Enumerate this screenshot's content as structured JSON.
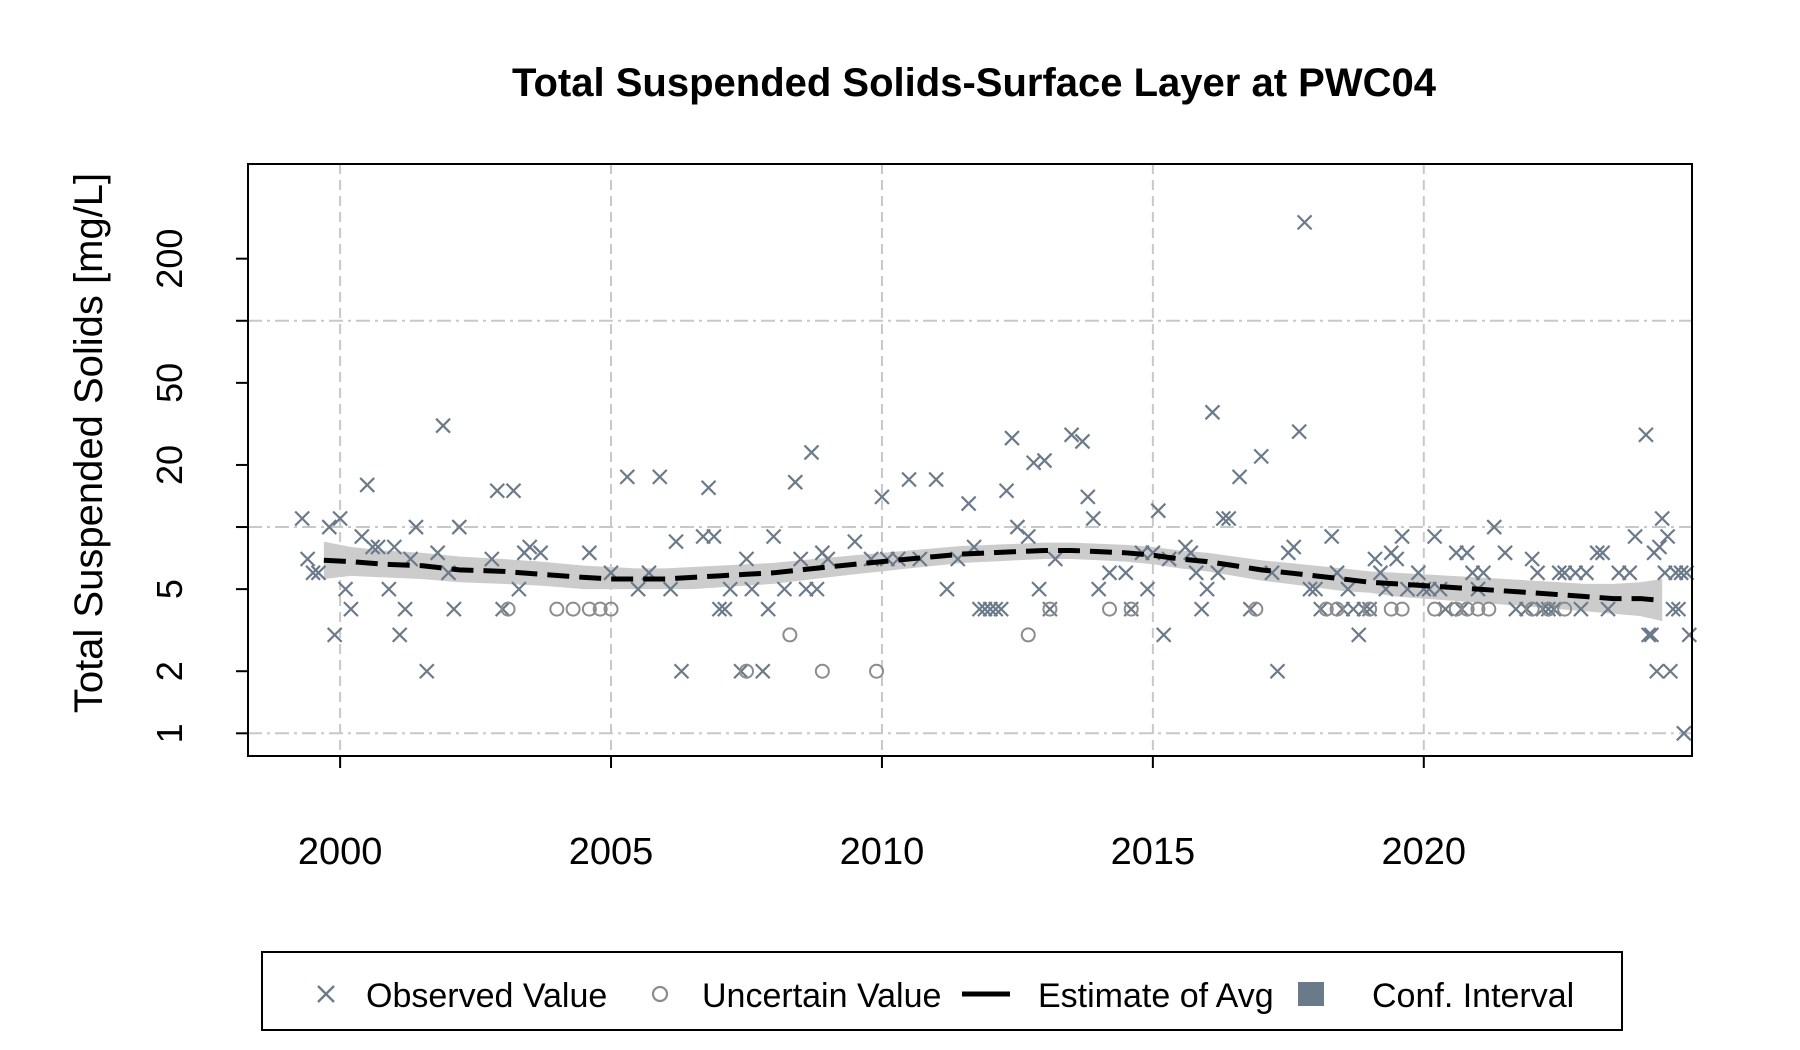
{
  "chart_data": {
    "type": "scatter",
    "title": "Total Suspended Solids-Surface Layer at PWC04",
    "ylabel": "Total Suspended Solids [mg/L]",
    "xlabel": "",
    "y_scale": "log",
    "xlim": [
      1998.3,
      2024.95
    ],
    "ylim_log10": [
      -0.11,
      2.76
    ],
    "x_ticks": [
      2000,
      2005,
      2010,
      2015,
      2020
    ],
    "x_tick_labels": [
      "2000",
      "2005",
      "2010",
      "2015",
      "2020"
    ],
    "y_ticks": [
      1,
      2,
      5,
      20,
      50,
      200
    ],
    "y_tick_labels": [
      "1",
      "2",
      "5",
      "20",
      "50",
      "200"
    ],
    "y_grid": [
      1,
      10,
      100
    ],
    "grid": true,
    "legend_position": "bottom",
    "colors": {
      "observed": "#6b7a8a",
      "uncertain": "#8c8c8c",
      "estimate": "#000000",
      "ci_fill": "#cccccc",
      "ci_legend": "#6b7a8a",
      "grid": "#c8c8c8"
    },
    "legend": [
      {
        "label": "Observed Value",
        "symbol": "x"
      },
      {
        "label": "Uncertain Value",
        "symbol": "circle"
      },
      {
        "label": "Estimate of Avg",
        "symbol": "dashed-line"
      },
      {
        "label": "Conf. Interval",
        "symbol": "square"
      }
    ],
    "series": [
      {
        "name": "Observed Value",
        "points": [
          [
            1999.3,
            11
          ],
          [
            1999.4,
            7
          ],
          [
            1999.5,
            6
          ],
          [
            1999.6,
            6
          ],
          [
            1999.8,
            10
          ],
          [
            1999.9,
            3
          ],
          [
            2000,
            11
          ],
          [
            2000.1,
            5
          ],
          [
            2000.2,
            4
          ],
          [
            2000.4,
            9
          ],
          [
            2000.5,
            16
          ],
          [
            2000.6,
            8
          ],
          [
            2000.7,
            8
          ],
          [
            2000.9,
            5
          ],
          [
            2001.0,
            8
          ],
          [
            2001.1,
            3
          ],
          [
            2001.2,
            4
          ],
          [
            2001.3,
            7
          ],
          [
            2001.4,
            10
          ],
          [
            2001.6,
            2
          ],
          [
            2001.8,
            7.5
          ],
          [
            2001.9,
            31
          ],
          [
            2002.0,
            6
          ],
          [
            2002.1,
            4
          ],
          [
            2002.2,
            10
          ],
          [
            2002.8,
            7
          ],
          [
            2002.9,
            15
          ],
          [
            2003.0,
            4
          ],
          [
            2003.2,
            15
          ],
          [
            2003.3,
            5
          ],
          [
            2003.4,
            7.5
          ],
          [
            2003.5,
            8
          ],
          [
            2003.7,
            7.5
          ],
          [
            2004.6,
            7.5
          ],
          [
            2005.0,
            6
          ],
          [
            2005.3,
            17.5
          ],
          [
            2005.5,
            5
          ],
          [
            2005.7,
            6
          ],
          [
            2005.9,
            17.5
          ],
          [
            2006.1,
            5
          ],
          [
            2006.2,
            8.5
          ],
          [
            2006.3,
            2
          ],
          [
            2006.7,
            9
          ],
          [
            2006.8,
            15.5
          ],
          [
            2006.9,
            9
          ],
          [
            2007.0,
            4
          ],
          [
            2007.1,
            4
          ],
          [
            2007.2,
            5
          ],
          [
            2007.4,
            2
          ],
          [
            2007.5,
            7
          ],
          [
            2007.6,
            5
          ],
          [
            2007.8,
            2
          ],
          [
            2007.9,
            4
          ],
          [
            2008.0,
            9
          ],
          [
            2008.2,
            5
          ],
          [
            2008.4,
            16.5
          ],
          [
            2008.5,
            7
          ],
          [
            2008.6,
            5
          ],
          [
            2008.7,
            23
          ],
          [
            2008.8,
            5
          ],
          [
            2008.9,
            7.5
          ],
          [
            2009.0,
            7
          ],
          [
            2009.5,
            8.5
          ],
          [
            2009.8,
            7
          ],
          [
            2010.0,
            14
          ],
          [
            2010.1,
            7
          ],
          [
            2010.3,
            7
          ],
          [
            2010.5,
            17
          ],
          [
            2010.7,
            7
          ],
          [
            2011.0,
            17
          ],
          [
            2011.2,
            5
          ],
          [
            2011.4,
            7
          ],
          [
            2011.6,
            13
          ],
          [
            2011.7,
            8
          ],
          [
            2011.8,
            4
          ],
          [
            2011.9,
            4
          ],
          [
            2012.0,
            4
          ],
          [
            2012.1,
            4
          ],
          [
            2012.2,
            4
          ],
          [
            2012.3,
            15
          ],
          [
            2012.4,
            27
          ],
          [
            2012.5,
            10
          ],
          [
            2012.7,
            9
          ],
          [
            2012.8,
            20.5
          ],
          [
            2012.9,
            5
          ],
          [
            2013.0,
            21
          ],
          [
            2013.1,
            4
          ],
          [
            2013.2,
            7
          ],
          [
            2013.5,
            28
          ],
          [
            2013.7,
            26
          ],
          [
            2013.8,
            14
          ],
          [
            2013.9,
            11
          ],
          [
            2014.0,
            5
          ],
          [
            2014.2,
            6
          ],
          [
            2014.5,
            6
          ],
          [
            2014.6,
            4
          ],
          [
            2014.8,
            7.5
          ],
          [
            2014.9,
            5
          ],
          [
            2015.0,
            7.5
          ],
          [
            2015.1,
            12
          ],
          [
            2015.2,
            3
          ],
          [
            2015.3,
            7
          ],
          [
            2015.6,
            8
          ],
          [
            2015.7,
            7.5
          ],
          [
            2015.8,
            6
          ],
          [
            2015.9,
            4
          ],
          [
            2016.0,
            5
          ],
          [
            2016.1,
            36
          ],
          [
            2016.2,
            6
          ],
          [
            2016.3,
            11
          ],
          [
            2016.4,
            11
          ],
          [
            2016.6,
            17.5
          ],
          [
            2016.8,
            4
          ],
          [
            2017.0,
            22
          ],
          [
            2017.2,
            6
          ],
          [
            2017.3,
            2
          ],
          [
            2017.5,
            7.5
          ],
          [
            2017.6,
            8
          ],
          [
            2017.7,
            29
          ],
          [
            2017.8,
            300
          ],
          [
            2017.9,
            5
          ],
          [
            2018.0,
            5
          ],
          [
            2018.1,
            4
          ],
          [
            2018.3,
            9
          ],
          [
            2018.4,
            6
          ],
          [
            2018.5,
            4
          ],
          [
            2018.6,
            5
          ],
          [
            2018.7,
            4
          ],
          [
            2018.8,
            3
          ],
          [
            2018.9,
            4
          ],
          [
            2019.0,
            4
          ],
          [
            2019.1,
            7
          ],
          [
            2019.2,
            6
          ],
          [
            2019.3,
            5
          ],
          [
            2019.4,
            7.5
          ],
          [
            2019.5,
            7
          ],
          [
            2019.6,
            9
          ],
          [
            2019.7,
            5
          ],
          [
            2019.9,
            6
          ],
          [
            2020.0,
            5
          ],
          [
            2020.1,
            5
          ],
          [
            2020.2,
            9
          ],
          [
            2020.3,
            5
          ],
          [
            2020.4,
            4
          ],
          [
            2020.6,
            7.5
          ],
          [
            2020.7,
            4
          ],
          [
            2020.8,
            7.5
          ],
          [
            2020.9,
            6
          ],
          [
            2021.0,
            5
          ],
          [
            2021.1,
            6
          ],
          [
            2021.3,
            10
          ],
          [
            2021.5,
            7.5
          ],
          [
            2021.7,
            4
          ],
          [
            2021.9,
            4
          ],
          [
            2022.0,
            7
          ],
          [
            2022.1,
            6
          ],
          [
            2022.2,
            4
          ],
          [
            2022.3,
            4
          ],
          [
            2022.4,
            4
          ],
          [
            2022.5,
            6
          ],
          [
            2022.6,
            6
          ],
          [
            2022.8,
            6
          ],
          [
            2022.9,
            4
          ],
          [
            2023.0,
            6
          ],
          [
            2023.2,
            7.5
          ],
          [
            2023.3,
            7.5
          ],
          [
            2023.4,
            4
          ],
          [
            2023.6,
            6
          ],
          [
            2023.8,
            6
          ],
          [
            2023.9,
            9
          ],
          [
            2024.1,
            28
          ],
          [
            2024.15,
            3
          ],
          [
            2024.2,
            3
          ],
          [
            2024.25,
            7.5
          ],
          [
            2024.3,
            2
          ],
          [
            2024.35,
            8
          ],
          [
            2024.4,
            11
          ],
          [
            2024.45,
            6
          ],
          [
            2024.5,
            9
          ],
          [
            2024.55,
            2
          ],
          [
            2024.6,
            4
          ],
          [
            2024.65,
            6
          ],
          [
            2024.7,
            4
          ],
          [
            2024.75,
            6
          ],
          [
            2024.8,
            1
          ],
          [
            2024.85,
            6
          ],
          [
            2024.9,
            3
          ]
        ]
      },
      {
        "name": "Uncertain Value",
        "points": [
          [
            2003.1,
            4
          ],
          [
            2004.0,
            4
          ],
          [
            2004.3,
            4
          ],
          [
            2004.6,
            4
          ],
          [
            2004.8,
            4
          ],
          [
            2005.0,
            4
          ],
          [
            2007.5,
            2
          ],
          [
            2008.3,
            3
          ],
          [
            2008.9,
            2
          ],
          [
            2009.9,
            2
          ],
          [
            2012.7,
            3
          ],
          [
            2013.1,
            4
          ],
          [
            2014.2,
            4
          ],
          [
            2014.6,
            4
          ],
          [
            2016.9,
            4
          ],
          [
            2018.2,
            4
          ],
          [
            2018.4,
            4
          ],
          [
            2019.0,
            4
          ],
          [
            2019.4,
            4
          ],
          [
            2019.6,
            4
          ],
          [
            2020.2,
            4
          ],
          [
            2020.6,
            4
          ],
          [
            2020.8,
            4
          ],
          [
            2021.0,
            4
          ],
          [
            2021.2,
            4
          ],
          [
            2022.0,
            4
          ],
          [
            2022.3,
            4
          ],
          [
            2022.6,
            4
          ]
        ]
      },
      {
        "name": "Estimate of Avg",
        "points": [
          [
            1999.7,
            6.9
          ],
          [
            2000.2,
            6.8
          ],
          [
            2000.8,
            6.6
          ],
          [
            2001.5,
            6.5
          ],
          [
            2002.2,
            6.2
          ],
          [
            2003.0,
            6.1
          ],
          [
            2003.7,
            5.9
          ],
          [
            2004.5,
            5.7
          ],
          [
            2005.0,
            5.6
          ],
          [
            2005.5,
            5.6
          ],
          [
            2006.0,
            5.6
          ],
          [
            2006.5,
            5.7
          ],
          [
            2007.0,
            5.8
          ],
          [
            2007.5,
            5.9
          ],
          [
            2008.0,
            6.0
          ],
          [
            2008.5,
            6.2
          ],
          [
            2009.0,
            6.4
          ],
          [
            2009.5,
            6.6
          ],
          [
            2010.0,
            6.8
          ],
          [
            2010.5,
            7.0
          ],
          [
            2011.0,
            7.2
          ],
          [
            2011.5,
            7.4
          ],
          [
            2012.0,
            7.5
          ],
          [
            2012.5,
            7.6
          ],
          [
            2013.0,
            7.7
          ],
          [
            2013.5,
            7.7
          ],
          [
            2014.0,
            7.6
          ],
          [
            2014.5,
            7.5
          ],
          [
            2015.0,
            7.3
          ],
          [
            2015.5,
            7.0
          ],
          [
            2016.0,
            6.8
          ],
          [
            2016.5,
            6.5
          ],
          [
            2017.0,
            6.2
          ],
          [
            2017.5,
            6.0
          ],
          [
            2018.0,
            5.8
          ],
          [
            2018.5,
            5.6
          ],
          [
            2019.0,
            5.4
          ],
          [
            2019.5,
            5.3
          ],
          [
            2020.0,
            5.2
          ],
          [
            2020.5,
            5.1
          ],
          [
            2021.0,
            5.0
          ],
          [
            2021.5,
            4.9
          ],
          [
            2022.0,
            4.8
          ],
          [
            2022.5,
            4.7
          ],
          [
            2023.0,
            4.6
          ],
          [
            2023.5,
            4.5
          ],
          [
            2024.0,
            4.5
          ],
          [
            2024.4,
            4.4
          ]
        ]
      },
      {
        "name": "Conf. Interval",
        "lower": [
          5.6,
          5.8,
          5.7,
          5.6,
          5.4,
          5.3,
          5.2,
          5.0,
          5.0,
          5.0,
          5.0,
          5.0,
          5.1,
          5.2,
          5.3,
          5.5,
          5.7,
          5.9,
          6.1,
          6.3,
          6.5,
          6.7,
          6.8,
          6.9,
          7.0,
          7.0,
          6.9,
          6.8,
          6.6,
          6.3,
          6.1,
          5.8,
          5.5,
          5.3,
          5.1,
          4.9,
          4.8,
          4.6,
          4.5,
          4.4,
          4.3,
          4.2,
          4.1,
          4.0,
          3.9,
          3.8,
          3.7,
          3.5
        ],
        "upper": [
          8.5,
          8.0,
          7.7,
          7.5,
          7.2,
          7.0,
          6.8,
          6.5,
          6.4,
          6.3,
          6.3,
          6.4,
          6.5,
          6.6,
          6.7,
          6.9,
          7.1,
          7.3,
          7.5,
          7.7,
          7.9,
          8.1,
          8.2,
          8.3,
          8.4,
          8.4,
          8.3,
          8.2,
          8.0,
          7.7,
          7.5,
          7.2,
          6.9,
          6.7,
          6.5,
          6.3,
          6.1,
          6.0,
          5.9,
          5.8,
          5.7,
          5.6,
          5.5,
          5.4,
          5.3,
          5.3,
          5.4,
          5.6
        ]
      }
    ]
  }
}
